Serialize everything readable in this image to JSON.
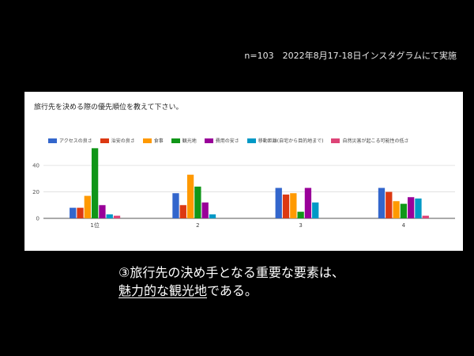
{
  "survey_note": "n=103　2022年8月17-18日インスタグラムにて実施",
  "caption": {
    "line1": "③旅行先の決め手となる重要な要素は、",
    "line2_underlined": "魅力的な観光地",
    "line2_rest": "である。"
  },
  "chart_data": {
    "type": "bar",
    "title": "旅行先を決める際の優先順位を教えて下さい。",
    "categories": [
      "1位",
      "2",
      "3",
      "4"
    ],
    "yticks": [
      0,
      20,
      40
    ],
    "ylim": [
      0,
      55
    ],
    "grid": true,
    "legend_position": "top",
    "series": [
      {
        "name": "アクセスの良さ",
        "color": "#3366cc",
        "values": [
          8,
          19,
          23,
          23
        ]
      },
      {
        "name": "治安の良さ",
        "color": "#dc3912",
        "values": [
          8,
          10,
          18,
          20
        ]
      },
      {
        "name": "食事",
        "color": "#ff9900",
        "values": [
          17,
          33,
          19,
          13
        ]
      },
      {
        "name": "観光地",
        "color": "#109618",
        "values": [
          53,
          24,
          5,
          11
        ]
      },
      {
        "name": "費用の安さ",
        "color": "#990099",
        "values": [
          10,
          12,
          23,
          16
        ]
      },
      {
        "name": "移動距離(自宅から目的地まで)",
        "color": "#0099c6",
        "values": [
          3,
          3,
          12,
          15
        ]
      },
      {
        "name": "自然災害が起こる可能性の低さ",
        "color": "#dd4477",
        "values": [
          2,
          0,
          0,
          2
        ]
      }
    ]
  }
}
